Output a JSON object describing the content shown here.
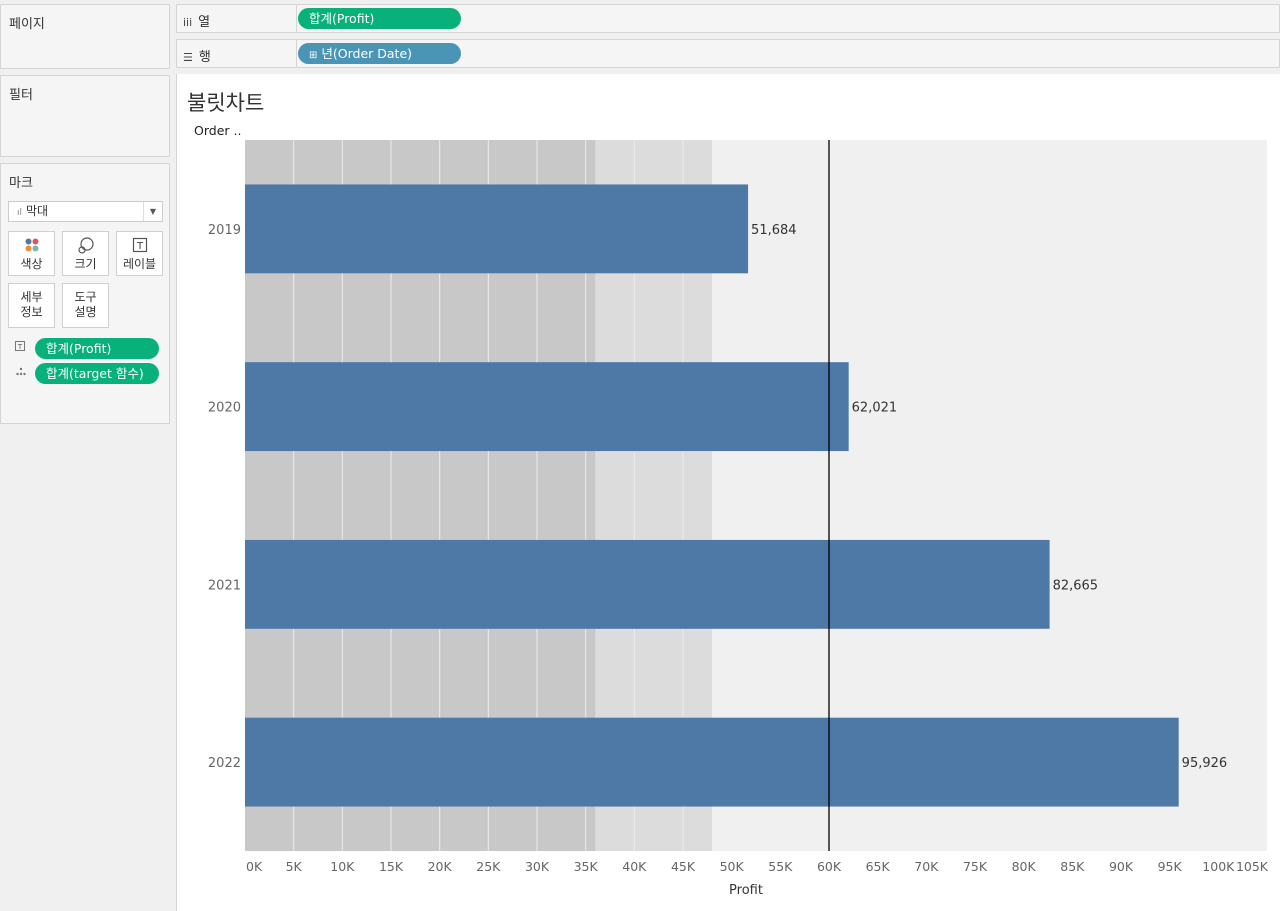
{
  "left_panel": {
    "pages_title": "페이지",
    "filters_title": "필터",
    "marks": {
      "title": "마크",
      "mark_type": "막대",
      "buttons": {
        "color": "색상",
        "size": "크기",
        "label": "레이블",
        "detail_line1": "세부",
        "detail_line2": "정보",
        "tooltip_line1": "도구",
        "tooltip_line2": "설명"
      },
      "fields": [
        {
          "icon": "label-icon",
          "name": "합계(Profit)"
        },
        {
          "icon": "detail-icon",
          "name": "합계(target 함수)"
        }
      ]
    }
  },
  "shelves": {
    "columns": {
      "icon": "columns-icon",
      "label": "열",
      "pill": "합계(Profit)"
    },
    "rows": {
      "icon": "rows-icon",
      "label": "행",
      "pill": "년(Order Date)",
      "pill_icon": "⊞"
    }
  },
  "sheet_title": "불릿차트",
  "row_header": "Order ..",
  "colors": {
    "bar": "#4e79a7",
    "green_pill": "#08b07a",
    "blue_pill": "#4a94b5",
    "band_dark": "#c8c8c8",
    "band_mid": "#dcdcdc",
    "band_light": "#f0f0f0"
  },
  "chart_data": {
    "type": "bar",
    "orientation": "horizontal",
    "categories": [
      "2019",
      "2020",
      "2021",
      "2022"
    ],
    "values": [
      51684,
      62021,
      82665,
      95926
    ],
    "value_labels": [
      "51,684",
      "62,021",
      "82,665",
      "95,926"
    ],
    "xlabel": "Profit",
    "ylabel": "Order ..",
    "xlim": [
      0,
      105000
    ],
    "xticks": [
      "0K",
      "5K",
      "10K",
      "15K",
      "20K",
      "25K",
      "30K",
      "35K",
      "40K",
      "45K",
      "50K",
      "55K",
      "60K",
      "65K",
      "70K",
      "75K",
      "80K",
      "85K",
      "90K",
      "95K",
      "100K",
      "105K"
    ],
    "reference_line": 60000,
    "bands": [
      {
        "from": 0,
        "to": 36000,
        "shade": "dark"
      },
      {
        "from": 36000,
        "to": 48000,
        "shade": "mid"
      },
      {
        "from": 48000,
        "to": 105000,
        "shade": "light"
      }
    ]
  }
}
